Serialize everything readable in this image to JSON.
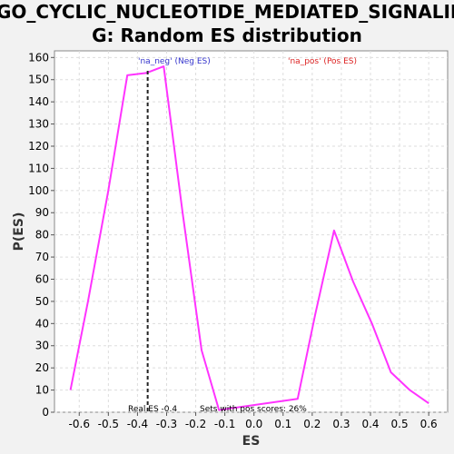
{
  "chart_data": {
    "type": "line",
    "title_line1": "GO_CYCLIC_NUCLEOTIDE_MEDIATED_SIGNALIN",
    "title_line2": "G: Random ES distribution",
    "xlabel": "ES",
    "ylabel": "P(ES)",
    "xlim": [
      -0.685,
      0.665
    ],
    "ylim": [
      0,
      163
    ],
    "xticks": [
      -0.6,
      -0.5,
      -0.4,
      -0.3,
      -0.2,
      -0.1,
      0.0,
      0.1,
      0.2,
      0.3,
      0.4,
      0.5,
      0.6
    ],
    "xtick_labels": [
      "-0.6",
      "-0.5",
      "-0.4",
      "-0.3",
      "-0.2",
      "-0.1",
      "0.0",
      "0.1",
      "0.2",
      "0.3",
      "0.4",
      "0.5",
      "0.6"
    ],
    "yticks": [
      0,
      10,
      20,
      30,
      40,
      50,
      60,
      70,
      80,
      90,
      100,
      110,
      120,
      130,
      140,
      150,
      160
    ],
    "grid": true,
    "series": [
      {
        "color": "#ff33ff",
        "x": [
          -0.63,
          -0.57,
          -0.5,
          -0.435,
          -0.37,
          -0.31,
          -0.245,
          -0.18,
          -0.12,
          0.15,
          0.21,
          0.275,
          0.34,
          0.405,
          0.47,
          0.535,
          0.6
        ],
        "y": [
          10,
          50,
          100,
          152,
          153,
          156,
          90,
          28,
          1,
          6,
          44,
          82,
          59,
          40,
          18,
          10,
          4
        ]
      }
    ],
    "real_es_line": {
      "x": -0.365,
      "color": "#222222",
      "style": "dashed"
    },
    "annotations": {
      "neg_label": "'na_neg' (Neg ES)",
      "pos_label": "'na_pos' (Pos ES)",
      "real_es": "Real ES -0.4",
      "pos_scores": "Sets with pos scores: 26%"
    },
    "colors": {
      "neg": "#3333cc",
      "pos": "#dd2222"
    }
  }
}
